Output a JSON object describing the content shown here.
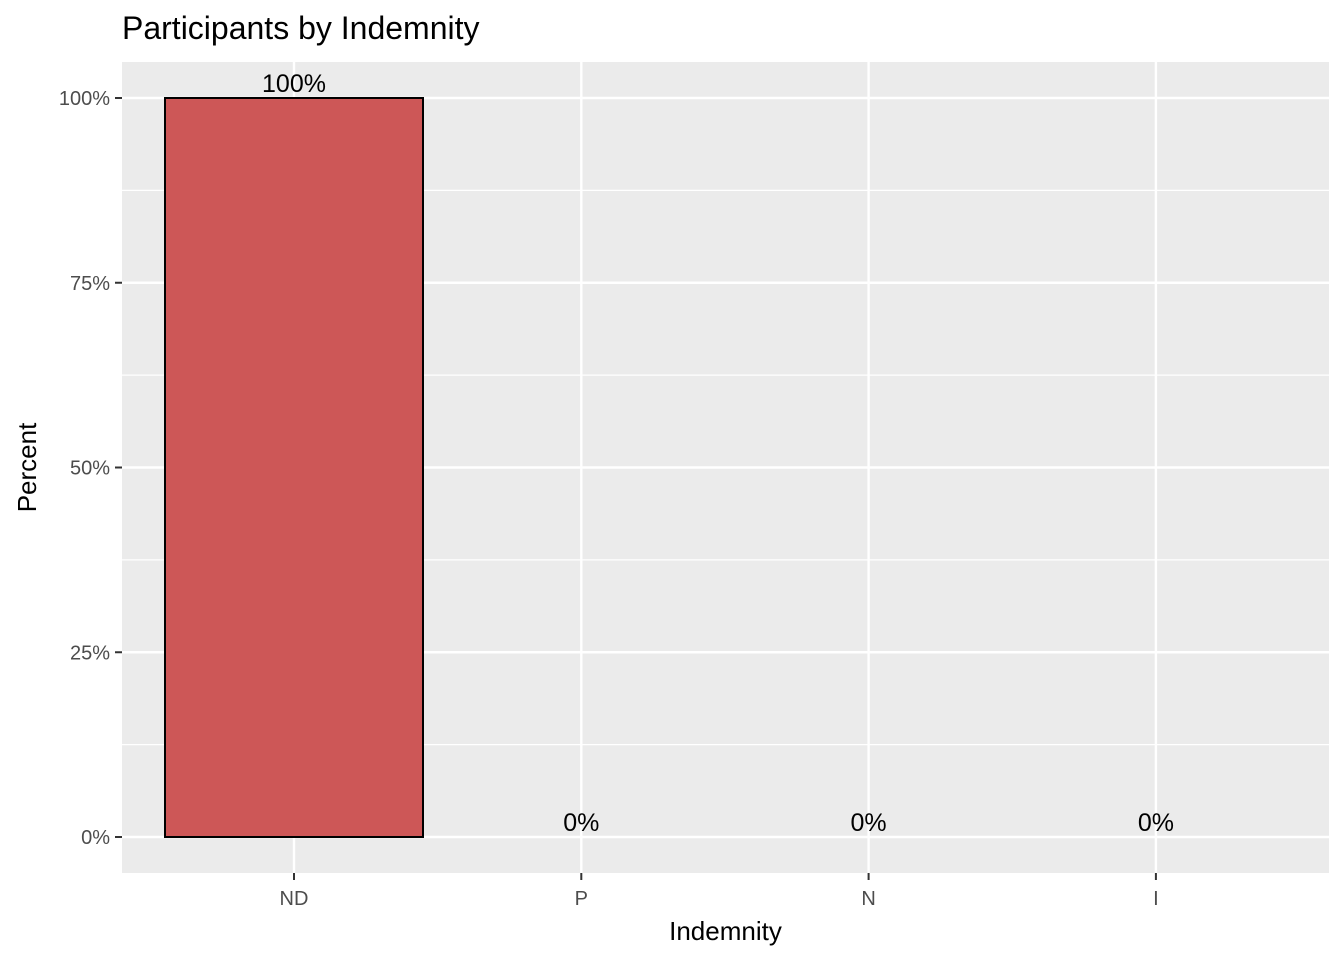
{
  "chart_data": {
    "type": "bar",
    "title": "Participants by Indemnity",
    "xlabel": "Indemnity",
    "ylabel": "Percent",
    "categories": [
      "ND",
      "P",
      "N",
      "I"
    ],
    "values": [
      100,
      0,
      0,
      0
    ],
    "data_labels": [
      "100%",
      "0%",
      "0%",
      "0%"
    ],
    "ylim": [
      0,
      100
    ],
    "yticks": [
      0,
      25,
      50,
      75,
      100
    ],
    "ytick_labels": [
      "0%",
      "25%",
      "50%",
      "75%",
      "100%"
    ],
    "grid": true,
    "legend": "none",
    "colors": {
      "bar_fill": "#cd5757",
      "bar_outline": "#000000",
      "panel_background": "#ebebeb",
      "grid": "#ffffff"
    }
  }
}
